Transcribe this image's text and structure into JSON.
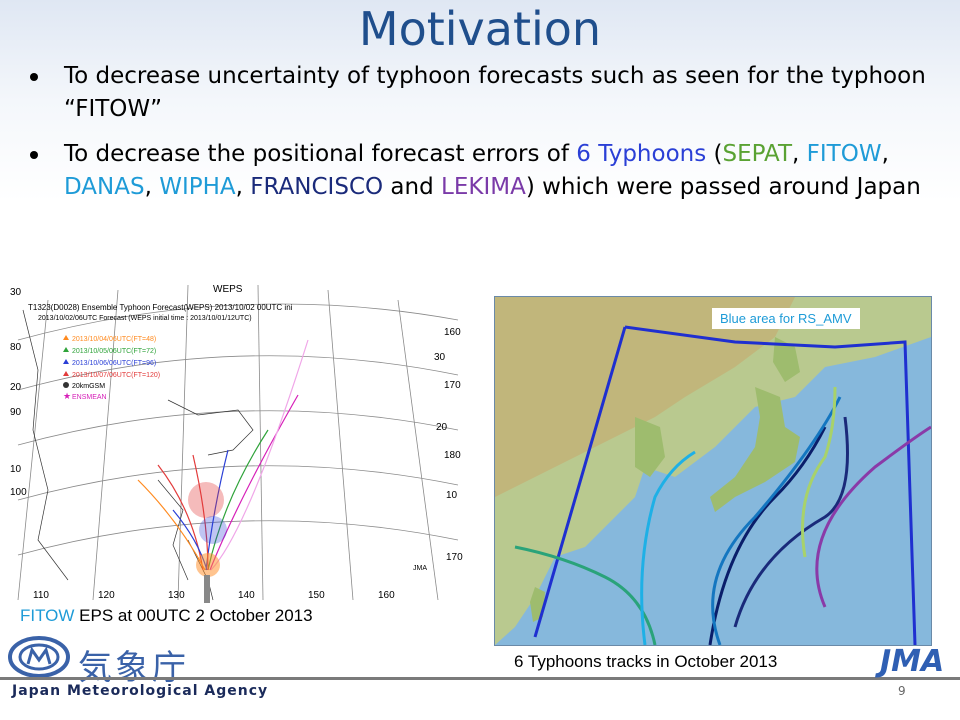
{
  "slide": {
    "title": "Motivation",
    "bullets": [
      {
        "text1": "To decrease uncertainty of typhoon forecasts such as seen for the typhoon “FITOW”"
      },
      {
        "pre": "To decrease the positional forecast errors of ",
        "count": "6 Typhoons",
        "open": " (",
        "t1": "SEPAT",
        "s1": ", ",
        "t2": "FITOW",
        "s2": ", ",
        "t3": "DANAS",
        "s3": ", ",
        "t4": "WIPHA",
        "s4": ", ",
        "t5": "FRANCISCO",
        "s5": " and ",
        "t6": "LEKIMA",
        "close": ") which were passed around Japan"
      }
    ]
  },
  "left_figure": {
    "header": "WEPS",
    "subtitle1": "T1323(D0028)  Ensemble Typhoon Forecast(WEPS)  2013/10/02 00UTC ini",
    "subtitle2": "2013/10/02/06UTC Forecast (WEPS initial time : 2013/10/01/12UTC)",
    "legend": [
      "2013/10/04/06UTC(FT=48)",
      "2013/10/05/06UTC(FT=72)",
      "2013/10/06/06UTC(FT=96)",
      "2013/10/07/06UTC(FT=120)",
      "20kmGSM",
      "ENSMEAN"
    ],
    "lon_labels": [
      "110",
      "120",
      "130",
      "140",
      "150",
      "160"
    ],
    "lat_labels_left": [
      "30",
      "80",
      "20",
      "90",
      "10",
      "100"
    ],
    "lat_labels_right": [
      "160",
      "30",
      "170",
      "20",
      "180",
      "10",
      "170"
    ],
    "credit": "JMA",
    "caption_accent": "FITOW",
    "caption_rest": " EPS at 00UTC 2 October 2013"
  },
  "right_figure": {
    "area_label": "Blue area for RS_AMV",
    "caption": "6 Typhoons tracks in October 2013"
  },
  "footer": {
    "kanji": "気象庁",
    "agency_name": "Japan Meteorological Agency",
    "wordmark": "JMA",
    "page_number": "9"
  },
  "colors": {
    "title": "#1f4e8c",
    "accent_blue": "#2a3fd6",
    "sepat": "#5aa233",
    "fitow": "#1e9bd7",
    "danas": "#1e9bd7",
    "wipha": "#1e9bd7",
    "francisco": "#1a2a7a",
    "lekima": "#7a3aa8"
  }
}
